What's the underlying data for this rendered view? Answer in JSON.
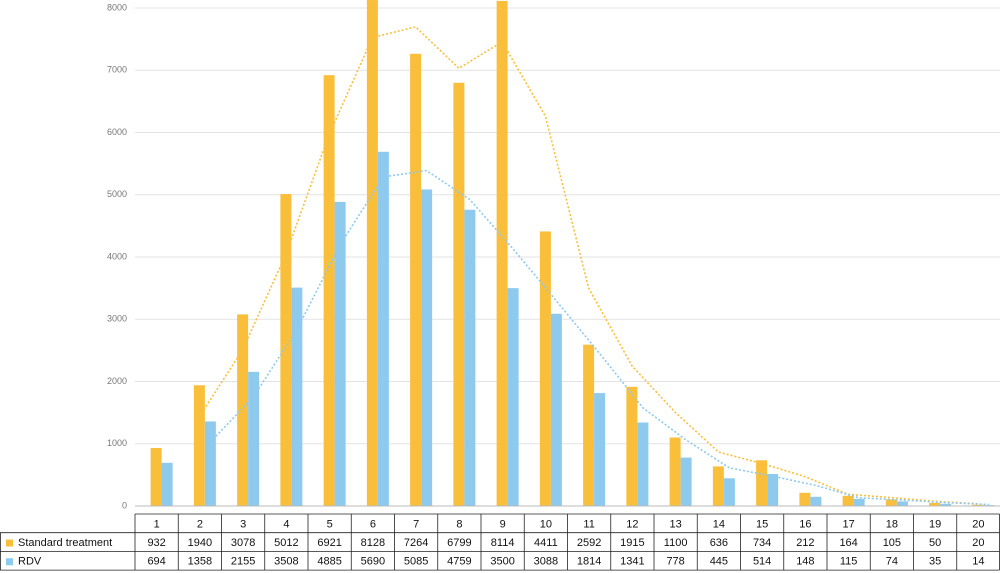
{
  "chart_data": {
    "type": "bar",
    "categories": [
      "1",
      "2",
      "3",
      "4",
      "5",
      "6",
      "7",
      "8",
      "9",
      "10",
      "11",
      "12",
      "13",
      "14",
      "15",
      "16",
      "17",
      "18",
      "19",
      "20"
    ],
    "series": [
      {
        "name": "Standard treatment",
        "color": "#f9bf3b",
        "values": [
          932,
          1940,
          3078,
          5012,
          6921,
          8128,
          7264,
          6799,
          8114,
          4411,
          2592,
          1915,
          1100,
          636,
          734,
          212,
          164,
          105,
          50,
          20
        ]
      },
      {
        "name": "RDV",
        "color": "#8ec9ee",
        "values": [
          694,
          1358,
          2155,
          3508,
          4885,
          5690,
          5085,
          4759,
          3500,
          3088,
          1814,
          1341,
          778,
          445,
          514,
          148,
          115,
          74,
          35,
          14
        ]
      }
    ],
    "ylim": [
      0,
      8000
    ],
    "yticks": [
      0,
      1000,
      2000,
      3000,
      4000,
      5000,
      6000,
      7000,
      8000
    ],
    "grid": true,
    "trendline": {
      "type": "moving-average",
      "period": 2
    },
    "data_table": true
  }
}
